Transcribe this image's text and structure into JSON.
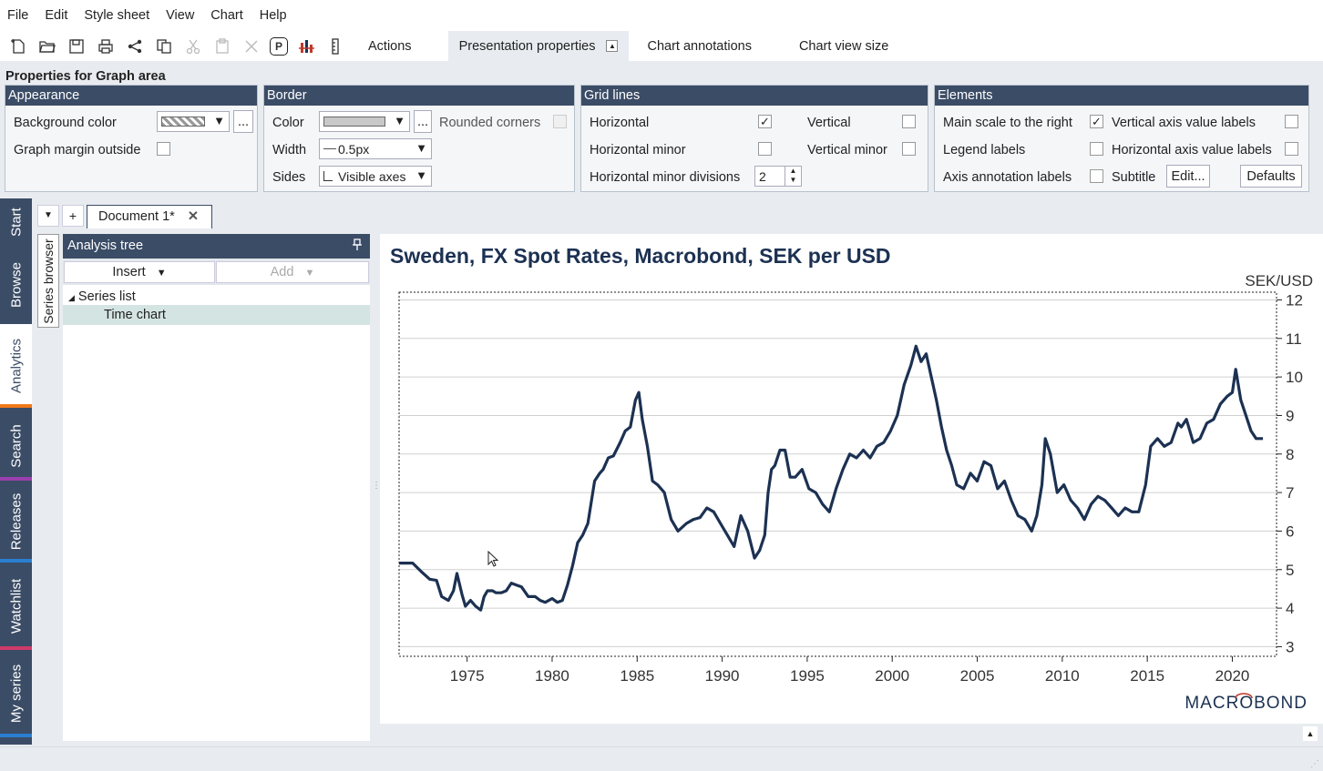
{
  "menu": [
    "File",
    "Edit",
    "Style sheet",
    "View",
    "Chart",
    "Help"
  ],
  "toolbar": {
    "icons": [
      "new-document-icon",
      "open-folder-icon",
      "save-icon",
      "print-icon",
      "share-icon",
      "copy-icon",
      "cut-icon",
      "paste-icon",
      "delete-icon",
      "presentation-icon",
      "chart-type-icon",
      "ruler-icon"
    ],
    "presentation_glyph": "P",
    "actions": "Actions",
    "presentation_properties": "Presentation properties",
    "chart_annotations": "Chart annotations",
    "chart_view_size": "Chart view size"
  },
  "props": {
    "title": "Properties for Graph area",
    "appearance": {
      "head": "Appearance",
      "background_color": "Background color",
      "graph_margin_outside": "Graph margin outside",
      "more": "..."
    },
    "border": {
      "head": "Border",
      "color": "Color",
      "more": "...",
      "rounded_corners": "Rounded corners",
      "width": "Width",
      "width_value": "0.5px",
      "sides": "Sides",
      "sides_value": "Visible axes"
    },
    "grid": {
      "head": "Grid lines",
      "horizontal": "Horizontal",
      "horizontal_checked": true,
      "vertical": "Vertical",
      "horizontal_minor": "Horizontal minor",
      "vertical_minor": "Vertical minor",
      "minor_divisions": "Horizontal minor divisions",
      "minor_divisions_value": "2"
    },
    "elements": {
      "head": "Elements",
      "main_scale_right": "Main scale to the right",
      "main_scale_right_checked": true,
      "vertical_axis_labels": "Vertical axis value labels",
      "legend_labels": "Legend labels",
      "horizontal_axis_labels": "Horizontal axis value labels",
      "axis_annotation_labels": "Axis annotation labels",
      "subtitle": "Subtitle",
      "edit": "Edit...",
      "defaults": "Defaults"
    }
  },
  "sidetabs": [
    {
      "label": "Start",
      "color": "#3b4c66"
    },
    {
      "label": "Browse",
      "color": "#3b4c66"
    },
    {
      "label": "Analytics",
      "color": "#f07a1a",
      "active": true
    },
    {
      "label": "Search",
      "color": "#9b3fb0"
    },
    {
      "label": "Releases",
      "color": "#2a7fd0"
    },
    {
      "label": "Watchlist",
      "color": "#d03a6a"
    },
    {
      "label": "My series",
      "color": "#2a7fd0"
    }
  ],
  "doc": {
    "dropdown_glyph": "▼",
    "add_glyph": "+",
    "tab_label": "Document 1*",
    "close_glyph": "✕"
  },
  "series_browser": "Series browser",
  "tree": {
    "head": "Analysis tree",
    "insert": "Insert",
    "add": "Add",
    "items": [
      "Series list",
      "Time chart"
    ]
  },
  "chart_data": {
    "type": "line",
    "title": "Sweden, FX Spot Rates, Macrobond, SEK per USD",
    "unit": "SEK/USD",
    "brand": "MACROBOND",
    "line_color": "#1c3152",
    "xlim": [
      1971.0,
      2022.6
    ],
    "ylim": [
      2.75,
      12.2
    ],
    "xticks": [
      1975,
      1980,
      1985,
      1990,
      1995,
      2000,
      2005,
      2010,
      2015,
      2020
    ],
    "yticks": [
      3,
      4,
      5,
      6,
      7,
      8,
      9,
      10,
      11,
      12
    ],
    "grid": "horizontal",
    "series": [
      {
        "x": [
          1971.0,
          1971.8,
          1972.3,
          1972.8,
          1973.2,
          1973.5,
          1973.9,
          1974.2,
          1974.4,
          1974.7,
          1974.9,
          1975.2,
          1975.5,
          1975.8,
          1976.0,
          1976.2,
          1976.5,
          1976.7,
          1977.0,
          1977.3,
          1977.6,
          1977.9,
          1978.2,
          1978.6,
          1979.0,
          1979.3,
          1979.6,
          1980.0,
          1980.3,
          1980.6,
          1980.9,
          1981.2,
          1981.5,
          1981.8,
          1982.1,
          1982.5,
          1982.8,
          1983.0,
          1983.3,
          1983.6,
          1984.0,
          1984.3,
          1984.6,
          1984.9,
          1985.1,
          1985.3,
          1985.6,
          1985.9,
          1986.2,
          1986.6,
          1987.0,
          1987.4,
          1987.9,
          1988.3,
          1988.7,
          1989.1,
          1989.5,
          1989.9,
          1990.3,
          1990.7,
          1991.1,
          1991.5,
          1991.9,
          1992.2,
          1992.5,
          1992.7,
          1992.9,
          1993.1,
          1993.4,
          1993.7,
          1994.0,
          1994.3,
          1994.7,
          1995.1,
          1995.5,
          1995.9,
          1996.3,
          1996.7,
          1997.1,
          1997.5,
          1997.9,
          1998.3,
          1998.7,
          1999.1,
          1999.5,
          1999.9,
          2000.3,
          2000.7,
          2001.1,
          2001.4,
          2001.7,
          2002.0,
          2002.3,
          2002.6,
          2002.9,
          2003.2,
          2003.5,
          2003.8,
          2004.2,
          2004.6,
          2005.0,
          2005.4,
          2005.8,
          2006.2,
          2006.6,
          2007.0,
          2007.4,
          2007.8,
          2008.2,
          2008.5,
          2008.8,
          2009.0,
          2009.3,
          2009.7,
          2010.1,
          2010.5,
          2010.9,
          2011.3,
          2011.7,
          2012.1,
          2012.5,
          2012.9,
          2013.3,
          2013.7,
          2014.1,
          2014.5,
          2014.9,
          2015.2,
          2015.6,
          2016.0,
          2016.4,
          2016.8,
          2017.0,
          2017.3,
          2017.7,
          2018.1,
          2018.5,
          2018.9,
          2019.3,
          2019.7,
          2020.0,
          2020.2,
          2020.5,
          2020.8,
          2021.1,
          2021.4,
          2021.8
        ],
        "y": [
          5.17,
          5.17,
          4.95,
          4.75,
          4.72,
          4.3,
          4.2,
          4.45,
          4.9,
          4.35,
          4.05,
          4.2,
          4.05,
          3.95,
          4.3,
          4.45,
          4.45,
          4.4,
          4.4,
          4.45,
          4.65,
          4.6,
          4.55,
          4.3,
          4.3,
          4.2,
          4.15,
          4.25,
          4.15,
          4.2,
          4.6,
          5.1,
          5.7,
          5.9,
          6.2,
          7.3,
          7.5,
          7.6,
          7.9,
          7.95,
          8.3,
          8.6,
          8.7,
          9.4,
          9.6,
          8.9,
          8.2,
          7.3,
          7.2,
          7.0,
          6.3,
          6.0,
          6.2,
          6.3,
          6.35,
          6.6,
          6.5,
          6.2,
          5.9,
          5.6,
          6.4,
          6.0,
          5.3,
          5.5,
          5.9,
          7.0,
          7.6,
          7.7,
          8.1,
          8.1,
          7.4,
          7.4,
          7.6,
          7.1,
          7.0,
          6.7,
          6.5,
          7.1,
          7.6,
          8.0,
          7.9,
          8.1,
          7.9,
          8.2,
          8.3,
          8.6,
          9.0,
          9.8,
          10.3,
          10.8,
          10.4,
          10.6,
          10.0,
          9.4,
          8.7,
          8.1,
          7.7,
          7.2,
          7.1,
          7.5,
          7.3,
          7.8,
          7.7,
          7.1,
          7.3,
          6.8,
          6.4,
          6.3,
          6.0,
          6.4,
          7.2,
          8.4,
          8.0,
          7.0,
          7.2,
          6.8,
          6.6,
          6.3,
          6.7,
          6.9,
          6.8,
          6.6,
          6.4,
          6.6,
          6.5,
          6.5,
          7.2,
          8.2,
          8.4,
          8.2,
          8.3,
          8.8,
          8.7,
          8.9,
          8.3,
          8.4,
          8.8,
          8.9,
          9.3,
          9.5,
          9.6,
          10.2,
          9.4,
          9.0,
          8.6,
          8.4,
          8.4
        ]
      }
    ]
  }
}
